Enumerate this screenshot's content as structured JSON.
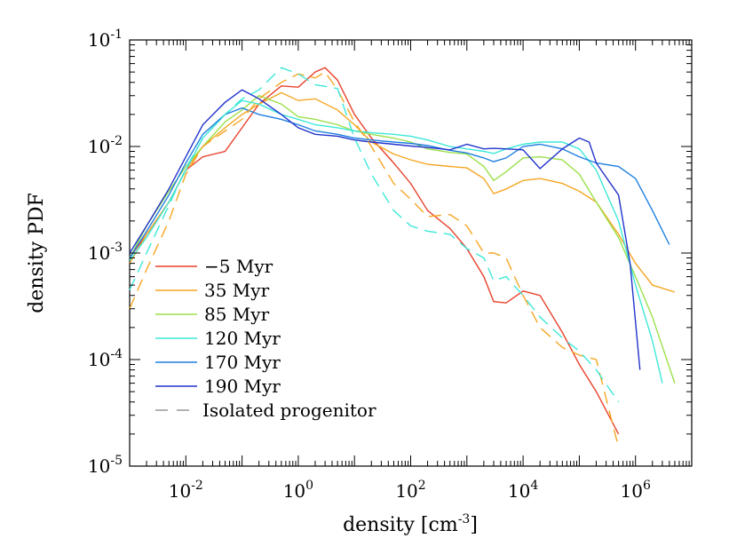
{
  "chart_data": {
    "type": "line",
    "title": "",
    "xlabel": "density [cm",
    "xlabel_sup": "-3",
    "xlabel_end": "]",
    "ylabel": "density PDF",
    "xscale": "log",
    "yscale": "log",
    "xlim": [
      0.001,
      10000000
    ],
    "ylim": [
      1e-05,
      0.1
    ],
    "grid": false,
    "legend_position": "bottom-left",
    "x_ticks": [
      {
        "value": 0.01,
        "base": "10",
        "exp": "-2"
      },
      {
        "value": 1,
        "base": "10",
        "exp": "0"
      },
      {
        "value": 100,
        "base": "10",
        "exp": "2"
      },
      {
        "value": 10000,
        "base": "10",
        "exp": "4"
      },
      {
        "value": 1000000,
        "base": "10",
        "exp": "6"
      }
    ],
    "y_ticks": [
      {
        "value": 1e-05,
        "base": "10",
        "exp": "-5"
      },
      {
        "value": 0.0001,
        "base": "10",
        "exp": "-4"
      },
      {
        "value": 0.001,
        "base": "10",
        "exp": "-3"
      },
      {
        "value": 0.01,
        "base": "10",
        "exp": "-2"
      },
      {
        "value": 0.1,
        "base": "10",
        "exp": "-1"
      }
    ],
    "series": [
      {
        "name": "−5 Myr",
        "color": "#e8412a",
        "dash": false,
        "points": [
          [
            0.001,
            0.0009
          ],
          [
            0.002,
            0.0015
          ],
          [
            0.005,
            0.003
          ],
          [
            0.01,
            0.006
          ],
          [
            0.02,
            0.008
          ],
          [
            0.05,
            0.009
          ],
          [
            0.1,
            0.015
          ],
          [
            0.2,
            0.025
          ],
          [
            0.5,
            0.037
          ],
          [
            1,
            0.036
          ],
          [
            2,
            0.05
          ],
          [
            3,
            0.055
          ],
          [
            5,
            0.042
          ],
          [
            10,
            0.02
          ],
          [
            20,
            0.012
          ],
          [
            50,
            0.007
          ],
          [
            100,
            0.0045
          ],
          [
            200,
            0.0025
          ],
          [
            500,
            0.0017
          ],
          [
            1000,
            0.0011
          ],
          [
            2000,
            0.0006
          ],
          [
            3000,
            0.00035
          ],
          [
            5000,
            0.00034
          ],
          [
            10000,
            0.00044
          ],
          [
            20000,
            0.0004
          ],
          [
            50000,
            0.00018
          ],
          [
            100000,
            9e-05
          ],
          [
            200000,
            5e-05
          ],
          [
            500000,
            2e-05
          ]
        ]
      },
      {
        "name": "35 Myr",
        "color": "#f5a623",
        "dash": false,
        "points": [
          [
            0.001,
            0.0008
          ],
          [
            0.002,
            0.0015
          ],
          [
            0.005,
            0.003
          ],
          [
            0.01,
            0.006
          ],
          [
            0.02,
            0.01
          ],
          [
            0.05,
            0.015
          ],
          [
            0.1,
            0.02
          ],
          [
            0.2,
            0.025
          ],
          [
            0.5,
            0.032
          ],
          [
            1,
            0.027
          ],
          [
            2,
            0.028
          ],
          [
            5,
            0.022
          ],
          [
            10,
            0.016
          ],
          [
            20,
            0.011
          ],
          [
            50,
            0.0085
          ],
          [
            100,
            0.0075
          ],
          [
            200,
            0.0068
          ],
          [
            500,
            0.0065
          ],
          [
            1000,
            0.0063
          ],
          [
            2000,
            0.005
          ],
          [
            3000,
            0.0036
          ],
          [
            5000,
            0.004
          ],
          [
            10000,
            0.0048
          ],
          [
            20000,
            0.005
          ],
          [
            50000,
            0.0045
          ],
          [
            100000,
            0.0038
          ],
          [
            200000,
            0.003
          ],
          [
            500000,
            0.0015
          ],
          [
            1000000,
            0.0008
          ],
          [
            2000000,
            0.0005
          ],
          [
            5000000,
            0.00043
          ]
        ]
      },
      {
        "name": "85 Myr",
        "color": "#9be04a",
        "dash": false,
        "points": [
          [
            0.001,
            0.0009
          ],
          [
            0.002,
            0.0018
          ],
          [
            0.005,
            0.0038
          ],
          [
            0.01,
            0.0065
          ],
          [
            0.02,
            0.01
          ],
          [
            0.05,
            0.017
          ],
          [
            0.1,
            0.022
          ],
          [
            0.2,
            0.03
          ],
          [
            0.5,
            0.025
          ],
          [
            1,
            0.019
          ],
          [
            2,
            0.018
          ],
          [
            5,
            0.016
          ],
          [
            10,
            0.014
          ],
          [
            20,
            0.013
          ],
          [
            50,
            0.012
          ],
          [
            100,
            0.011
          ],
          [
            200,
            0.0095
          ],
          [
            500,
            0.0088
          ],
          [
            1000,
            0.0085
          ],
          [
            2000,
            0.0065
          ],
          [
            3000,
            0.0048
          ],
          [
            5000,
            0.0058
          ],
          [
            10000,
            0.0078
          ],
          [
            20000,
            0.008
          ],
          [
            50000,
            0.0075
          ],
          [
            100000,
            0.0055
          ],
          [
            200000,
            0.003
          ],
          [
            500000,
            0.0014
          ],
          [
            1000000,
            0.0006
          ],
          [
            2000000,
            0.00025
          ],
          [
            5000000,
            6e-05
          ]
        ]
      },
      {
        "name": "120 Myr",
        "color": "#3de8d8",
        "dash": false,
        "points": [
          [
            0.001,
            0.00085
          ],
          [
            0.002,
            0.0014
          ],
          [
            0.005,
            0.003
          ],
          [
            0.01,
            0.006
          ],
          [
            0.02,
            0.012
          ],
          [
            0.05,
            0.02
          ],
          [
            0.1,
            0.027
          ],
          [
            0.2,
            0.025
          ],
          [
            0.5,
            0.02
          ],
          [
            1,
            0.018
          ],
          [
            2,
            0.016
          ],
          [
            5,
            0.015
          ],
          [
            10,
            0.014
          ],
          [
            20,
            0.0135
          ],
          [
            50,
            0.013
          ],
          [
            100,
            0.0125
          ],
          [
            200,
            0.0115
          ],
          [
            500,
            0.01
          ],
          [
            1000,
            0.0095
          ],
          [
            2000,
            0.009
          ],
          [
            3000,
            0.0086
          ],
          [
            5000,
            0.0095
          ],
          [
            10000,
            0.0105
          ],
          [
            20000,
            0.011
          ],
          [
            50000,
            0.011
          ],
          [
            100000,
            0.0095
          ],
          [
            200000,
            0.006
          ],
          [
            500000,
            0.002
          ],
          [
            1000000,
            0.0005
          ],
          [
            2000000,
            0.00015
          ],
          [
            3000000,
            6e-05
          ]
        ]
      },
      {
        "name": "170 Myr",
        "color": "#1f7fe0",
        "dash": false,
        "points": [
          [
            0.001,
            0.0009
          ],
          [
            0.002,
            0.0016
          ],
          [
            0.005,
            0.0035
          ],
          [
            0.01,
            0.007
          ],
          [
            0.02,
            0.013
          ],
          [
            0.05,
            0.02
          ],
          [
            0.1,
            0.023
          ],
          [
            0.2,
            0.02
          ],
          [
            0.5,
            0.018
          ],
          [
            1,
            0.016
          ],
          [
            2,
            0.014
          ],
          [
            5,
            0.013
          ],
          [
            10,
            0.012
          ],
          [
            20,
            0.0115
          ],
          [
            50,
            0.011
          ],
          [
            100,
            0.0107
          ],
          [
            200,
            0.0102
          ],
          [
            500,
            0.0092
          ],
          [
            1000,
            0.0087
          ],
          [
            2000,
            0.0078
          ],
          [
            3000,
            0.0072
          ],
          [
            5000,
            0.0078
          ],
          [
            10000,
            0.01
          ],
          [
            20000,
            0.0105
          ],
          [
            50000,
            0.0095
          ],
          [
            100000,
            0.008
          ],
          [
            200000,
            0.007
          ],
          [
            500000,
            0.0065
          ],
          [
            1000000,
            0.005
          ],
          [
            2000000,
            0.0025
          ],
          [
            4000000,
            0.0012
          ]
        ]
      },
      {
        "name": "190 Myr",
        "color": "#2233cc",
        "dash": false,
        "points": [
          [
            0.001,
            0.001
          ],
          [
            0.002,
            0.0018
          ],
          [
            0.005,
            0.004
          ],
          [
            0.01,
            0.008
          ],
          [
            0.02,
            0.016
          ],
          [
            0.05,
            0.026
          ],
          [
            0.1,
            0.034
          ],
          [
            0.2,
            0.028
          ],
          [
            0.5,
            0.02
          ],
          [
            1,
            0.015
          ],
          [
            2,
            0.013
          ],
          [
            5,
            0.0125
          ],
          [
            10,
            0.0115
          ],
          [
            20,
            0.011
          ],
          [
            50,
            0.0105
          ],
          [
            100,
            0.0101
          ],
          [
            200,
            0.0098
          ],
          [
            500,
            0.0093
          ],
          [
            1000,
            0.0105
          ],
          [
            2000,
            0.0095
          ],
          [
            3000,
            0.0096
          ],
          [
            5000,
            0.0095
          ],
          [
            10000,
            0.0093
          ],
          [
            20000,
            0.0062
          ],
          [
            50000,
            0.0095
          ],
          [
            100000,
            0.012
          ],
          [
            150000,
            0.011
          ],
          [
            200000,
            0.007
          ],
          [
            500000,
            0.0035
          ],
          [
            800000,
            0.0008
          ],
          [
            1200000,
            8e-05
          ]
        ]
      },
      {
        "name": "Isolated progenitor",
        "dash": true,
        "colors": [
          "#f5a623",
          "#3de8d8"
        ],
        "points": [],
        "variants": [
          {
            "color": "#f5a623",
            "points": [
              [
                0.001,
                0.0003
              ],
              [
                0.002,
                0.0007
              ],
              [
                0.005,
                0.002
              ],
              [
                0.01,
                0.0055
              ],
              [
                0.02,
                0.01
              ],
              [
                0.05,
                0.014
              ],
              [
                0.1,
                0.018
              ],
              [
                0.2,
                0.028
              ],
              [
                0.5,
                0.04
              ],
              [
                1,
                0.048
              ],
              [
                2,
                0.044
              ],
              [
                3,
                0.05
              ],
              [
                5,
                0.034
              ],
              [
                10,
                0.017
              ],
              [
                20,
                0.01
              ],
              [
                50,
                0.0045
              ],
              [
                100,
                0.0032
              ],
              [
                200,
                0.0022
              ],
              [
                500,
                0.0023
              ],
              [
                1000,
                0.0018
              ],
              [
                2000,
                0.001
              ],
              [
                3000,
                0.001
              ],
              [
                5000,
                0.0009
              ],
              [
                10000,
                0.0004
              ],
              [
                20000,
                0.0002
              ],
              [
                50000,
                0.00013
              ],
              [
                100000,
                0.00011
              ],
              [
                200000,
                0.0001
              ],
              [
                500000,
                1.5e-05
              ]
            ]
          },
          {
            "color": "#3de8d8",
            "points": [
              [
                0.001,
                0.00045
              ],
              [
                0.002,
                0.001
              ],
              [
                0.005,
                0.0028
              ],
              [
                0.01,
                0.0062
              ],
              [
                0.02,
                0.012
              ],
              [
                0.05,
                0.02
              ],
              [
                0.1,
                0.028
              ],
              [
                0.2,
                0.034
              ],
              [
                0.5,
                0.055
              ],
              [
                1,
                0.048
              ],
              [
                2,
                0.038
              ],
              [
                5,
                0.035
              ],
              [
                10,
                0.012
              ],
              [
                20,
                0.0055
              ],
              [
                50,
                0.0025
              ],
              [
                100,
                0.0018
              ],
              [
                200,
                0.0016
              ],
              [
                500,
                0.0015
              ],
              [
                1000,
                0.0011
              ],
              [
                2000,
                0.0009
              ],
              [
                3000,
                0.00055
              ],
              [
                5000,
                0.0006
              ],
              [
                10000,
                0.0004
              ],
              [
                20000,
                0.00025
              ],
              [
                50000,
                0.00016
              ],
              [
                100000,
                0.00012
              ],
              [
                200000,
                8e-05
              ],
              [
                500000,
                4e-05
              ]
            ]
          }
        ]
      }
    ]
  }
}
